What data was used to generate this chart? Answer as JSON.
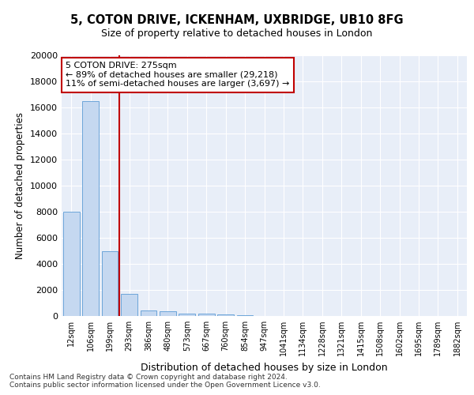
{
  "title_line1": "5, COTON DRIVE, ICKENHAM, UXBRIDGE, UB10 8FG",
  "title_line2": "Size of property relative to detached houses in London",
  "xlabel": "Distribution of detached houses by size in London",
  "ylabel": "Number of detached properties",
  "categories": [
    "12sqm",
    "106sqm",
    "199sqm",
    "293sqm",
    "386sqm",
    "480sqm",
    "573sqm",
    "667sqm",
    "760sqm",
    "854sqm",
    "947sqm",
    "1041sqm",
    "1134sqm",
    "1228sqm",
    "1321sqm",
    "1415sqm",
    "1508sqm",
    "1602sqm",
    "1695sqm",
    "1789sqm",
    "1882sqm"
  ],
  "values": [
    8000,
    16500,
    5000,
    1700,
    450,
    380,
    200,
    180,
    130,
    90,
    0,
    0,
    0,
    0,
    0,
    0,
    0,
    0,
    0,
    0,
    0
  ],
  "bar_color": "#c5d8f0",
  "bar_edge_color": "#5b9bd5",
  "vline_color": "#c00000",
  "vline_x": 2.5,
  "annotation_text": "5 COTON DRIVE: 275sqm\n← 89% of detached houses are smaller (29,218)\n11% of semi-detached houses are larger (3,697) →",
  "annotation_box_color": "#ffffff",
  "annotation_box_edge": "#c00000",
  "ylim": [
    0,
    20000
  ],
  "yticks": [
    0,
    2000,
    4000,
    6000,
    8000,
    10000,
    12000,
    14000,
    16000,
    18000,
    20000
  ],
  "background_color": "#e8eef8",
  "footer": "Contains HM Land Registry data © Crown copyright and database right 2024.\nContains public sector information licensed under the Open Government Licence v3.0.",
  "grid_color": "#ffffff",
  "fig_bg": "#ffffff"
}
